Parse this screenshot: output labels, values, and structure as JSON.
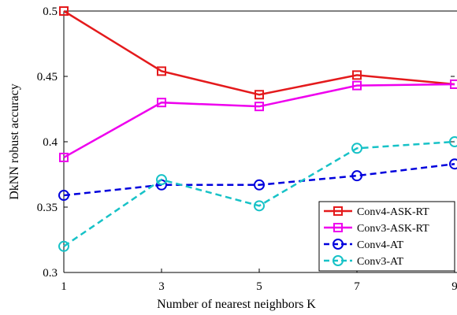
{
  "chart_data": {
    "type": "line",
    "x": [
      1,
      3,
      5,
      7,
      9
    ],
    "xticks": [
      1,
      3,
      5,
      7,
      9
    ],
    "yticks": [
      0.3,
      0.35,
      0.4,
      0.45,
      0.5
    ],
    "xlim": [
      1,
      9
    ],
    "ylim": [
      0.3,
      0.5
    ],
    "xlabel": "Number of nearest neighbors K",
    "ylabel": "DkNN robust accuracy",
    "grid": false,
    "legend_position": "bottom-right",
    "series": [
      {
        "name": "Conv4-ASK-RT",
        "values": [
          0.5,
          0.454,
          0.436,
          0.451,
          0.444
        ],
        "color": "#e41a1c",
        "marker": "square",
        "dash": "solid"
      },
      {
        "name": "Conv3-ASK-RT",
        "values": [
          0.388,
          0.43,
          0.427,
          0.443,
          0.444
        ],
        "color": "#ee00ee",
        "marker": "square",
        "dash": "solid"
      },
      {
        "name": "Conv4-AT",
        "values": [
          0.359,
          0.367,
          0.367,
          0.374,
          0.383
        ],
        "color": "#0000dd",
        "marker": "circle",
        "dash": "dashed"
      },
      {
        "name": "Conv3-AT",
        "values": [
          0.32,
          0.371,
          0.351,
          0.395,
          0.4
        ],
        "color": "#17c2c7",
        "marker": "circle",
        "dash": "dashed"
      }
    ]
  }
}
